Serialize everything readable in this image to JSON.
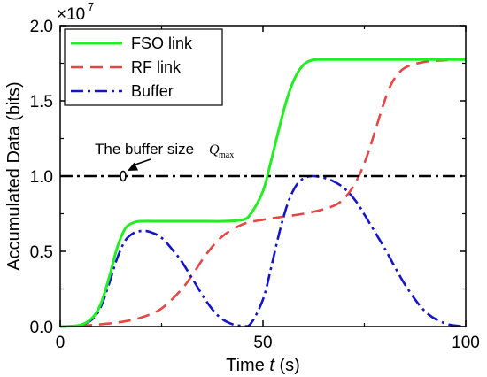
{
  "chart_data": {
    "type": "line",
    "xlabel_prefix": "Time ",
    "xlabel_var": "t",
    "xlabel_suffix": " (s)",
    "ylabel": "Accumulated Data (bits)",
    "y_multiplier": "×10",
    "y_exponent": "7",
    "xlim": [
      0,
      100
    ],
    "ylim": [
      0,
      2.0
    ],
    "xticks": [
      0,
      50,
      100
    ],
    "yticks": [
      0.0,
      0.5,
      1.0,
      1.5,
      2.0
    ],
    "ytick_labels": [
      "0.0",
      "0.5",
      "1.0",
      "1.5",
      "2.0"
    ],
    "legend_position": "top-left",
    "series": [
      {
        "name": "FSO link",
        "color": "#22ee22",
        "style": "solid",
        "x": [
          0,
          5,
          8,
          10,
          12,
          14,
          16,
          18,
          20,
          25,
          30,
          35,
          40,
          45,
          47,
          50,
          52,
          54,
          56,
          58,
          60,
          62,
          64,
          66,
          70,
          80,
          90,
          100
        ],
        "y": [
          0,
          0.01,
          0.06,
          0.15,
          0.32,
          0.52,
          0.65,
          0.69,
          0.7,
          0.7,
          0.7,
          0.7,
          0.7,
          0.71,
          0.75,
          0.9,
          1.1,
          1.32,
          1.52,
          1.66,
          1.74,
          1.77,
          1.775,
          1.775,
          1.775,
          1.775,
          1.775,
          1.775
        ]
      },
      {
        "name": "RF link",
        "color": "#e84545",
        "style": "dashed",
        "x": [
          0,
          5,
          10,
          15,
          20,
          25,
          30,
          33,
          36,
          40,
          45,
          50,
          55,
          60,
          65,
          68,
          70,
          72,
          74,
          76,
          78,
          80,
          82,
          85,
          90,
          95,
          100
        ],
        "y": [
          0,
          0.005,
          0.015,
          0.03,
          0.06,
          0.12,
          0.25,
          0.36,
          0.48,
          0.6,
          0.68,
          0.71,
          0.73,
          0.75,
          0.78,
          0.81,
          0.85,
          0.92,
          1.02,
          1.16,
          1.33,
          1.5,
          1.63,
          1.72,
          1.76,
          1.77,
          1.78
        ]
      },
      {
        "name": "Buffer",
        "color": "#1515c8",
        "style": "dashdot",
        "x": [
          0,
          5,
          8,
          10,
          12,
          14,
          16,
          18,
          20,
          22,
          25,
          28,
          30,
          33,
          36,
          39,
          42,
          45,
          47,
          50,
          52,
          54,
          56,
          58,
          60,
          62,
          64,
          67,
          70,
          73,
          76,
          80,
          85,
          90,
          95,
          100
        ],
        "y": [
          0,
          0.01,
          0.05,
          0.13,
          0.28,
          0.45,
          0.57,
          0.62,
          0.635,
          0.63,
          0.59,
          0.5,
          0.43,
          0.3,
          0.17,
          0.07,
          0.02,
          0.005,
          0.02,
          0.18,
          0.39,
          0.62,
          0.81,
          0.93,
          0.985,
          1.0,
          0.995,
          0.97,
          0.92,
          0.83,
          0.7,
          0.52,
          0.28,
          0.1,
          0.02,
          0.0
        ]
      }
    ],
    "threshold": {
      "y": 1.0,
      "color": "#000000",
      "style": "dashdot"
    },
    "annotation": {
      "text": "The buffer size",
      "symbol": "Q",
      "symbol_sub": "max",
      "target_x": 15.5,
      "target_y": 1.0
    }
  }
}
